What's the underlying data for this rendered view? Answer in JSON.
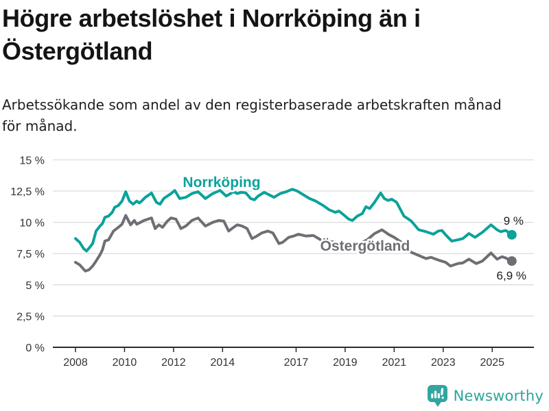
{
  "footer": {
    "brand": "Newsworthy"
  },
  "chart_data": {
    "type": "line",
    "title": "Högre arbetslöshet i Norrköping än i Östergötland",
    "subtitle": "Arbetssökande som andel av den registerbaserade arbetskraften månad för månad.",
    "xlabel": "",
    "ylabel": "",
    "resolution": "monthly",
    "grid": true,
    "legend": "direct-line-labels",
    "x_axis": {
      "tick_values": [
        2008,
        2010,
        2012,
        2014,
        2017,
        2019,
        2021,
        2023,
        2025
      ],
      "tick_labels": [
        "2008",
        "2010",
        "2012",
        "2014",
        "2017",
        "2019",
        "2021",
        "2023",
        "2025"
      ],
      "range": [
        2007.1,
        2026.7
      ]
    },
    "y_axis": {
      "tick_values": [
        0,
        2.5,
        5,
        7.5,
        10,
        12.5,
        15
      ],
      "tick_labels": [
        "0 %",
        "2,5 %",
        "5 %",
        "7,5 %",
        "10 %",
        "12,5 %",
        "15 %"
      ],
      "range": [
        0,
        15
      ],
      "unit": "%"
    },
    "series": [
      {
        "name": "Norrköping",
        "id": "norrkoping",
        "color": "#0ba29a",
        "end_label": "9 %",
        "x": [
          2008.0,
          2008.17,
          2008.33,
          2008.45,
          2008.58,
          2008.7,
          2008.84,
          2009.0,
          2009.1,
          2009.2,
          2009.35,
          2009.5,
          2009.6,
          2009.75,
          2009.9,
          2010.05,
          2010.2,
          2010.35,
          2010.5,
          2010.6,
          2010.7,
          2010.85,
          2011.0,
          2011.1,
          2011.3,
          2011.45,
          2011.6,
          2011.9,
          2012.05,
          2012.25,
          2012.5,
          2012.75,
          2013.0,
          2013.3,
          2013.6,
          2013.9,
          2014.15,
          2014.45,
          2014.6,
          2014.75,
          2014.95,
          2015.15,
          2015.3,
          2015.45,
          2015.7,
          2015.9,
          2016.1,
          2016.35,
          2016.6,
          2016.85,
          2017.05,
          2017.3,
          2017.55,
          2017.8,
          2018.1,
          2018.35,
          2018.6,
          2018.75,
          2019.0,
          2019.15,
          2019.3,
          2019.5,
          2019.7,
          2019.85,
          2020.0,
          2020.2,
          2020.45,
          2020.6,
          2020.75,
          2020.9,
          2021.1,
          2021.4,
          2021.7,
          2022.0,
          2022.3,
          2022.6,
          2022.8,
          2022.95,
          2023.1,
          2023.35,
          2023.6,
          2023.8,
          2024.05,
          2024.3,
          2024.6,
          2024.95,
          2025.2,
          2025.35,
          2025.55,
          2025.8
        ],
        "values": [
          8.7,
          8.4,
          7.9,
          7.7,
          8.0,
          8.3,
          9.3,
          9.7,
          9.9,
          10.4,
          10.5,
          10.8,
          11.2,
          11.35,
          11.7,
          12.45,
          11.7,
          11.45,
          11.7,
          11.55,
          11.7,
          12.0,
          12.2,
          12.35,
          11.6,
          11.45,
          11.9,
          12.3,
          12.55,
          11.9,
          12.0,
          12.3,
          12.45,
          11.9,
          12.3,
          12.55,
          12.1,
          12.45,
          12.3,
          12.4,
          12.35,
          11.9,
          11.8,
          12.1,
          12.4,
          12.2,
          12.0,
          12.3,
          12.45,
          12.65,
          12.5,
          12.2,
          11.9,
          11.7,
          11.35,
          11.0,
          10.8,
          10.9,
          10.5,
          10.25,
          10.15,
          10.5,
          10.7,
          11.25,
          11.1,
          11.6,
          12.35,
          11.9,
          11.75,
          11.85,
          11.6,
          10.5,
          10.1,
          9.4,
          9.25,
          9.05,
          9.3,
          9.35,
          9.0,
          8.5,
          8.6,
          8.7,
          9.1,
          8.8,
          9.2,
          9.8,
          9.4,
          9.25,
          9.35,
          9.0
        ]
      },
      {
        "name": "Östergötland",
        "id": "ostergotland",
        "color": "#6e6e74",
        "end_label": "6,9 %",
        "x": [
          2008.0,
          2008.17,
          2008.4,
          2008.55,
          2008.7,
          2008.84,
          2009.0,
          2009.1,
          2009.2,
          2009.35,
          2009.55,
          2009.75,
          2009.9,
          2010.05,
          2010.25,
          2010.4,
          2010.5,
          2010.65,
          2010.8,
          2010.95,
          2011.1,
          2011.25,
          2011.4,
          2011.55,
          2011.75,
          2011.9,
          2012.1,
          2012.3,
          2012.5,
          2012.75,
          2013.0,
          2013.3,
          2013.6,
          2013.85,
          2014.05,
          2014.25,
          2014.45,
          2014.6,
          2014.8,
          2015.0,
          2015.2,
          2015.4,
          2015.6,
          2015.85,
          2016.05,
          2016.3,
          2016.45,
          2016.7,
          2016.9,
          2017.1,
          2017.4,
          2017.7,
          2018.0,
          2018.3,
          2018.6,
          2019.0,
          2019.3,
          2019.6,
          2019.9,
          2020.2,
          2020.5,
          2020.8,
          2021.0,
          2021.3,
          2021.5,
          2021.7,
          2022.0,
          2022.3,
          2022.5,
          2022.85,
          2023.1,
          2023.3,
          2023.6,
          2023.8,
          2024.05,
          2024.35,
          2024.6,
          2024.95,
          2025.2,
          2025.4,
          2025.55,
          2025.8
        ],
        "values": [
          6.8,
          6.6,
          6.1,
          6.2,
          6.5,
          6.9,
          7.4,
          7.8,
          8.5,
          8.6,
          9.3,
          9.6,
          9.85,
          10.55,
          9.8,
          10.15,
          9.85,
          10.0,
          10.15,
          10.25,
          10.35,
          9.5,
          9.8,
          9.6,
          10.1,
          10.35,
          10.25,
          9.5,
          9.7,
          10.15,
          10.35,
          9.7,
          10.0,
          10.15,
          10.1,
          9.3,
          9.6,
          9.8,
          9.7,
          9.5,
          8.7,
          8.9,
          9.15,
          9.3,
          9.15,
          8.3,
          8.4,
          8.8,
          8.9,
          9.05,
          8.9,
          8.95,
          8.6,
          8.5,
          8.4,
          8.3,
          8.2,
          8.3,
          8.6,
          9.1,
          9.4,
          9.0,
          8.8,
          8.4,
          8.0,
          7.6,
          7.35,
          7.1,
          7.2,
          6.95,
          6.8,
          6.5,
          6.7,
          6.75,
          7.05,
          6.7,
          6.9,
          7.55,
          7.05,
          7.25,
          7.15,
          6.9
        ]
      }
    ]
  }
}
